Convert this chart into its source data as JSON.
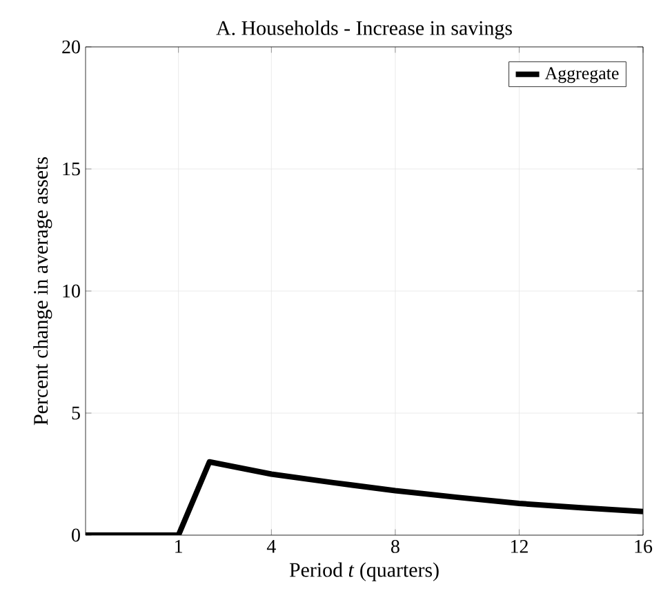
{
  "chart_data": {
    "type": "line",
    "title": "A. Households - Increase in savings",
    "xlabel": "Period *t* (quarters)",
    "ylabel": "Percent change in average assets",
    "xlim": [
      -2,
      16
    ],
    "xticks": [
      1,
      4,
      8,
      12,
      16
    ],
    "ylim": [
      0,
      20
    ],
    "yticks": [
      0,
      5,
      10,
      15,
      20
    ],
    "grid": true,
    "legend": "top right",
    "line_style": "solid",
    "marker": "none",
    "series": [
      {
        "name": "Aggregate",
        "color": "#000000",
        "x": [
          -2,
          -1,
          0,
          1,
          2,
          3,
          4,
          6,
          8,
          10,
          12,
          14,
          16
        ],
        "values": [
          0,
          0,
          0,
          0,
          3.0,
          2.75,
          2.5,
          2.15,
          1.82,
          1.55,
          1.3,
          1.12,
          0.97
        ]
      }
    ]
  }
}
